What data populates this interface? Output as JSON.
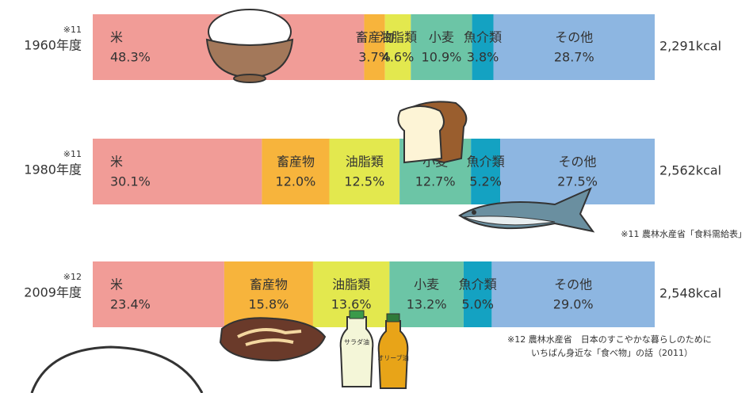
{
  "chart_data": {
    "type": "bar",
    "orientation": "horizontal",
    "stacked": true,
    "categories": [
      "1960年度",
      "1980年度",
      "2009年度"
    ],
    "category_notes": [
      "※11",
      "※11",
      "※12"
    ],
    "totals": [
      "2,291kcal",
      "2,562kcal",
      "2,548kcal"
    ],
    "xlim": [
      0,
      100
    ],
    "series": [
      {
        "name": "米",
        "color": "#f19c97",
        "values": [
          48.3,
          30.1,
          23.4
        ],
        "value_labels": [
          "48.3%",
          "30.1%",
          "23.4%"
        ]
      },
      {
        "name": "畜産物",
        "color": "#f7b43c",
        "values": [
          3.7,
          12.0,
          15.8
        ],
        "value_labels": [
          "3.7%",
          "12.0%",
          "15.8%"
        ]
      },
      {
        "name": "油脂類",
        "color": "#e3e84e",
        "values": [
          4.6,
          12.5,
          13.6
        ],
        "value_labels": [
          "4.6%",
          "12.5%",
          "13.6%"
        ]
      },
      {
        "name": "小麦",
        "color": "#6cc5a6",
        "values": [
          10.9,
          12.7,
          13.2
        ],
        "value_labels": [
          "10.9%",
          "12.7%",
          "13.2%"
        ]
      },
      {
        "name": "魚介類",
        "color": "#14a2c2",
        "values": [
          3.8,
          5.2,
          5.0
        ],
        "value_labels": [
          "3.8%",
          "5.2%",
          "5.0%"
        ]
      },
      {
        "name": "その他",
        "color": "#8db6e1",
        "values": [
          28.7,
          27.5,
          29.0
        ],
        "value_labels": [
          "28.7%",
          "27.5%",
          "29.0%"
        ]
      }
    ],
    "sources": [
      [
        "※11 農林水産省「食料需給表」"
      ],
      [
        "※12 農林水産省　日本のすこやかな暮らしのために",
        "いちばん身近な「食べ物」の話（2011）"
      ]
    ],
    "illustration_labels": [
      "サラダ油",
      "オリーブ油"
    ]
  }
}
